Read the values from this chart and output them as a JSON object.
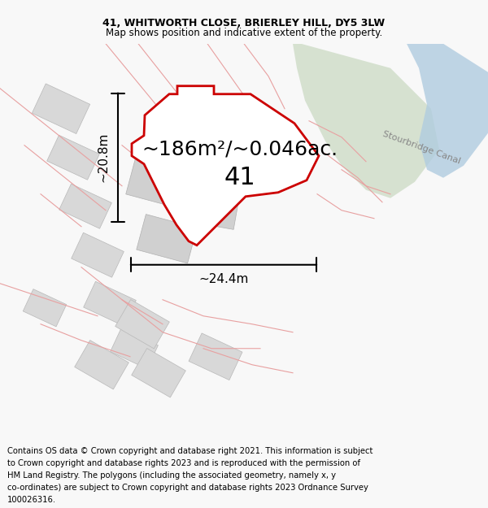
{
  "title_line1": "41, WHITWORTH CLOSE, BRIERLEY HILL, DY5 3LW",
  "title_line2": "Map shows position and indicative extent of the property.",
  "area_text": "~186m²/~0.046ac.",
  "label_41": "41",
  "dim_vertical": "~20.8m",
  "dim_horizontal": "~24.4m",
  "canal_label": "Stourbridge Canal",
  "footer_lines": [
    "Contains OS data © Crown copyright and database right 2021. This information is subject",
    "to Crown copyright and database rights 2023 and is reproduced with the permission of",
    "HM Land Registry. The polygons (including the associated geometry, namely x, y",
    "co-ordinates) are subject to Crown copyright and database rights 2023 Ordnance Survey",
    "100026316."
  ],
  "bg_color": "#f8f8f8",
  "map_bg": "#ffffff",
  "red_poly_color": "#cc0000",
  "red_light_color": "#e8a0a0",
  "green_area_color": "#c8d8c0",
  "blue_water_color": "#b0cce0",
  "title_fontsize": 9,
  "area_fontsize": 18,
  "label_fontsize": 22,
  "dim_fontsize": 11,
  "footer_fontsize": 7.2,
  "canal_fontsize": 8
}
